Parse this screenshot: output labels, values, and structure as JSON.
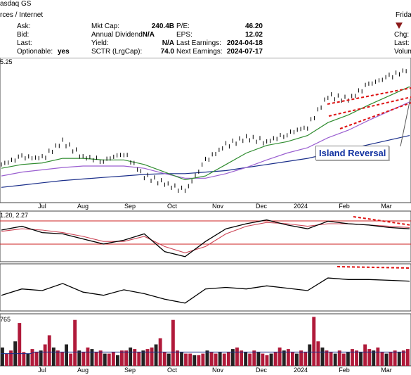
{
  "header": {
    "exchange": "rces / Internet",
    "exchange_right": "asdaq GS",
    "left_fields": [
      {
        "label": "Ask:",
        "value": ""
      },
      {
        "label": "Bid:",
        "value": ""
      },
      {
        "label": "Last:",
        "value": ""
      },
      {
        "label": "Optionable:",
        "value": "yes"
      }
    ],
    "mid_fields": [
      {
        "label": "Mkt Cap:",
        "value": "240.4B"
      },
      {
        "label": "Annual Dividend:",
        "value": "N/A"
      },
      {
        "label": "Yield:",
        "value": "N/A"
      },
      {
        "label": "SCTR (LrgCap):",
        "value": "74.0"
      }
    ],
    "right_fields": [
      {
        "label": "P/E:",
        "value": "46.20"
      },
      {
        "label": "EPS:",
        "value": "12.02"
      },
      {
        "label": "Last Earnings:",
        "value": "2024-04-18"
      },
      {
        "label": "Next Earnings:",
        "value": "2024-07-17"
      }
    ],
    "far_right": [
      "Frida",
      "Chg:",
      "Last:",
      "Volum"
    ],
    "down_marker_color": "#8b1a1a"
  },
  "chart_data": {
    "type": "line",
    "price_panel_label": "5.25",
    "x_labels": [
      "Jul",
      "Aug",
      "Sep",
      "Oct",
      "Nov",
      "Dec",
      "2024",
      "Feb",
      "Mar"
    ],
    "annotation": "Island Reversal",
    "ma_colors": {
      "short": "#2e8b2e",
      "mid": "#9a5fd0",
      "long": "#1a2e8a",
      "trend": "#dd1111"
    },
    "indicator1_label": "1.20, 2.27",
    "volume_label": "765",
    "price": {
      "x": [
        "Jun 15",
        "Jun 28",
        "Jul 14",
        "Jul 28",
        "Aug 14",
        "Aug 28",
        "Sep 14",
        "Sep 28",
        "Oct 14",
        "Oct 24",
        "Nov 7",
        "Nov 21",
        "Dec 7",
        "Dec 21",
        "Jan 7",
        "Jan 21",
        "Jan 31",
        "Feb 14",
        "Feb 28",
        "Mar 14",
        "Mar 28"
      ],
      "close": [
        470,
        480,
        478,
        500,
        480,
        475,
        485,
        455,
        445,
        435,
        475,
        495,
        505,
        500,
        510,
        520,
        560,
        555,
        575,
        585,
        595
      ],
      "ma_short": [
        465,
        470,
        472,
        478,
        478,
        476,
        476,
        470,
        460,
        450,
        455,
        470,
        485,
        495,
        500,
        508,
        525,
        535,
        548,
        560,
        572
      ],
      "ma_mid": [
        455,
        460,
        463,
        466,
        468,
        468,
        468,
        465,
        458,
        452,
        452,
        458,
        466,
        476,
        485,
        492,
        505,
        515,
        528,
        540,
        552
      ],
      "ma_long": [
        440,
        443,
        446,
        449,
        451,
        453,
        455,
        457,
        458,
        458,
        460,
        462,
        466,
        470,
        474,
        478,
        484,
        490,
        496,
        502,
        508
      ],
      "y_range": [
        420,
        610
      ]
    },
    "indicator1": {
      "line": [
        0.5,
        0.8,
        0.3,
        0.2,
        -0.2,
        -0.6,
        -0.3,
        0.2,
        -1.2,
        -1.6,
        -0.4,
        0.6,
        1.0,
        1.3,
        0.9,
        0.6,
        1.2,
        1.0,
        0.9,
        0.7,
        0.6
      ],
      "signal": [
        0.4,
        0.6,
        0.5,
        0.3,
        0.0,
        -0.4,
        -0.4,
        0.0,
        -0.8,
        -1.3,
        -0.8,
        0.2,
        0.8,
        1.1,
        1.0,
        0.8,
        1.0,
        1.0,
        0.9,
        0.8,
        0.7
      ],
      "y_range": [
        -2,
        2
      ]
    },
    "indicator2": {
      "line": [
        40,
        48,
        46,
        55,
        44,
        40,
        47,
        42,
        35,
        30,
        48,
        50,
        48,
        52,
        49,
        46,
        62,
        60,
        60,
        59,
        58
      ],
      "y_range": [
        20,
        80
      ]
    },
    "volume": {
      "values": [
        12,
        8,
        10,
        16,
        28,
        9,
        8,
        11,
        9,
        10,
        14,
        20,
        12,
        10,
        9,
        14,
        8,
        30,
        10,
        9,
        12,
        11,
        9,
        10,
        8,
        8,
        9,
        7,
        10,
        10,
        12,
        11,
        9,
        10,
        11,
        12,
        14,
        18,
        9,
        8,
        30,
        10,
        9,
        8,
        8,
        7,
        7,
        8,
        10,
        9,
        8,
        9,
        8,
        9,
        11,
        12,
        10,
        9,
        8,
        10,
        9,
        8,
        7,
        8,
        9,
        12,
        10,
        11,
        9,
        8,
        10,
        9,
        14,
        32,
        16,
        12,
        10,
        9,
        8,
        10,
        8,
        9,
        11,
        10,
        9,
        14,
        11,
        10,
        12,
        9,
        8,
        9,
        10,
        9,
        10,
        11
      ],
      "avg": [
        8,
        8,
        8,
        8,
        8,
        8,
        8,
        8,
        9,
        9,
        9,
        9,
        9,
        9,
        9,
        9,
        9,
        9,
        9,
        9,
        9,
        9,
        9,
        9,
        9,
        9,
        9,
        9,
        9,
        9,
        9,
        9,
        9,
        9,
        9,
        9,
        9,
        9,
        9,
        9,
        9,
        9,
        9,
        9,
        9,
        9,
        9,
        9,
        9,
        9,
        9,
        9,
        9,
        9,
        9,
        9,
        9,
        9,
        9,
        9,
        9,
        9,
        9,
        9,
        9,
        9,
        9,
        9,
        9,
        9,
        9,
        9,
        9,
        9,
        9,
        9,
        9,
        9,
        9,
        9,
        9,
        9,
        9,
        9,
        9,
        9,
        9,
        9,
        9,
        9,
        9,
        9,
        9,
        9,
        9,
        9
      ],
      "max": 34
    }
  }
}
